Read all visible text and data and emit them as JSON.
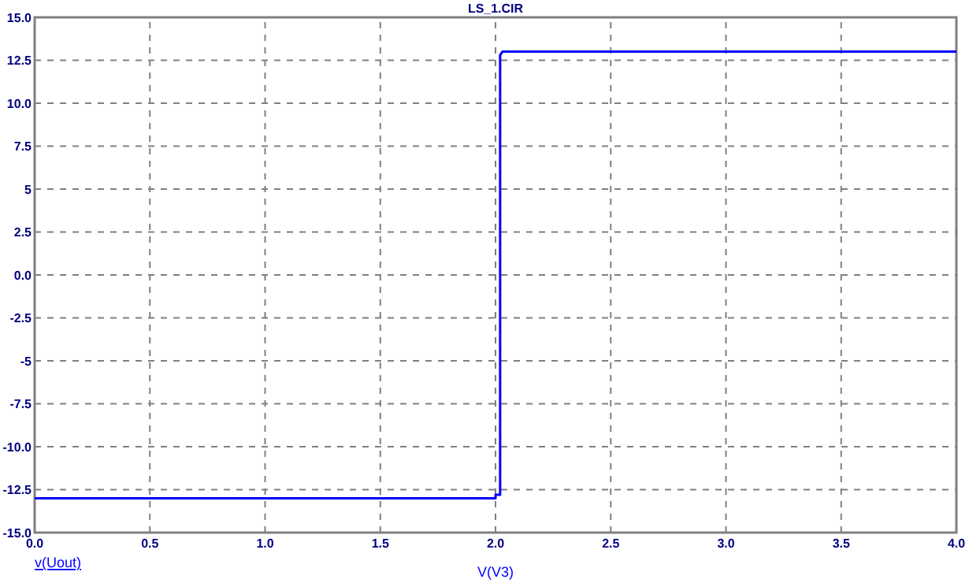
{
  "chart_data": {
    "type": "line",
    "title": "LS_1.CIR",
    "xlabel": "V(V3)",
    "xlim": [
      0,
      4
    ],
    "xticks": [
      {
        "value": 0,
        "label": "0.0"
      },
      0.5,
      {
        "value": 1,
        "label": "1.0"
      },
      1.5,
      {
        "value": 2,
        "label": "2.0"
      },
      2.5,
      {
        "value": 3,
        "label": "3.0"
      },
      3.5,
      {
        "value": 4,
        "label": "4.0"
      }
    ],
    "ylim": [
      -15,
      15
    ],
    "yticks": [
      {
        "value": -15,
        "label": "-15.0"
      },
      -12.5,
      {
        "value": -10,
        "label": "-10.0"
      },
      -7.5,
      -5,
      -2.5,
      {
        "value": 0,
        "label": "0.0"
      },
      2.5,
      5,
      7.5,
      {
        "value": 10,
        "label": "10.0"
      },
      12.5,
      {
        "value": 15,
        "label": "15.0"
      }
    ],
    "grid": true,
    "legend": "bottom left",
    "marker": "none",
    "line_style": "solid",
    "series": [
      {
        "name": "v(Uout)",
        "color": "#0000ff",
        "x": [
          0,
          2.0,
          2.0,
          2.02,
          2.02,
          2.03,
          4
        ],
        "values": [
          -13,
          -13,
          -12.8,
          -12.8,
          12.8,
          13,
          13
        ]
      }
    ]
  }
}
